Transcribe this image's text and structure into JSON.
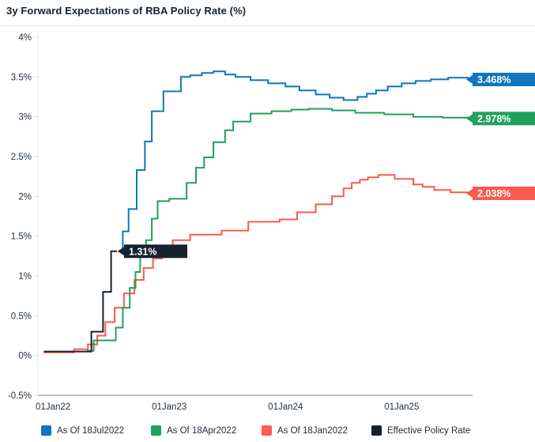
{
  "header": {
    "title": "3y Forward Expectations of RBA Policy Rate (%)"
  },
  "chart_data": {
    "type": "line",
    "step_interpolation": true,
    "title": "3y Forward Expectations of RBA Policy Rate (%)",
    "xlabel": "",
    "ylabel": "",
    "grid": false,
    "legend_position": "bottom",
    "xlim": [
      -0.13,
      3.61
    ],
    "ylim": [
      -0.5,
      4
    ],
    "x_axis": {
      "tick_labels": [
        "01Jan22",
        "01Jan23",
        "01Jan24",
        "01Jan25"
      ],
      "tick_values": [
        0,
        1,
        2,
        3
      ]
    },
    "y_axis": {
      "tick_labels": [
        "4%",
        "3.5%",
        "3%",
        "2.5%",
        "2%",
        "1.5%",
        "1%",
        "0.5%",
        "0%",
        "-0.5%"
      ],
      "tick_values": [
        4,
        3.5,
        3,
        2.5,
        2,
        1.5,
        1,
        0.5,
        0,
        -0.5
      ]
    },
    "series": [
      {
        "name": "As Of 18Jan2022",
        "color": "#fa5a50",
        "end_label": "2.038%",
        "end_label_side": "right",
        "points": [
          [
            -0.08,
            0.04
          ],
          [
            0.18,
            0.08
          ],
          [
            0.3,
            0.14
          ],
          [
            0.38,
            0.25
          ],
          [
            0.45,
            0.42
          ],
          [
            0.53,
            0.6
          ],
          [
            0.61,
            0.78
          ],
          [
            0.7,
            0.95
          ],
          [
            0.78,
            1.1
          ],
          [
            0.86,
            1.22
          ],
          [
            0.94,
            1.35
          ],
          [
            1.03,
            1.45
          ],
          [
            1.18,
            1.52
          ],
          [
            1.45,
            1.57
          ],
          [
            1.68,
            1.68
          ],
          [
            1.95,
            1.71
          ],
          [
            2.1,
            1.8
          ],
          [
            2.26,
            1.9
          ],
          [
            2.4,
            2.0
          ],
          [
            2.5,
            2.1
          ],
          [
            2.57,
            2.17
          ],
          [
            2.64,
            2.21
          ],
          [
            2.71,
            2.24
          ],
          [
            2.8,
            2.27
          ],
          [
            2.94,
            2.22
          ],
          [
            3.1,
            2.15
          ],
          [
            3.18,
            2.12
          ],
          [
            3.28,
            2.08
          ],
          [
            3.42,
            2.05
          ],
          [
            3.57,
            2.038
          ]
        ]
      },
      {
        "name": "As Of 18Apr2022",
        "color": "#20a05c",
        "end_label": "2.978%",
        "end_label_side": "right",
        "points": [
          [
            0.29,
            0.06
          ],
          [
            0.35,
            0.19
          ],
          [
            0.54,
            0.35
          ],
          [
            0.6,
            0.6
          ],
          [
            0.66,
            0.85
          ],
          [
            0.71,
            1.05
          ],
          [
            0.75,
            1.25
          ],
          [
            0.8,
            1.45
          ],
          [
            0.85,
            1.72
          ],
          [
            0.9,
            1.94
          ],
          [
            1.0,
            1.97
          ],
          [
            1.15,
            2.17
          ],
          [
            1.23,
            2.36
          ],
          [
            1.3,
            2.49
          ],
          [
            1.38,
            2.68
          ],
          [
            1.48,
            2.83
          ],
          [
            1.55,
            2.94
          ],
          [
            1.7,
            3.04
          ],
          [
            1.88,
            3.07
          ],
          [
            2.05,
            3.09
          ],
          [
            2.2,
            3.1
          ],
          [
            2.4,
            3.08
          ],
          [
            2.6,
            3.05
          ],
          [
            2.85,
            3.03
          ],
          [
            3.1,
            3.0
          ],
          [
            3.35,
            2.99
          ],
          [
            3.57,
            2.978
          ]
        ]
      },
      {
        "name": "As Of 18Jul2022",
        "color": "#0e76bd",
        "end_label": "3.468%",
        "end_label_side": "right",
        "points": [
          [
            0.56,
            1.31
          ],
          [
            0.6,
            1.56
          ],
          [
            0.65,
            1.84
          ],
          [
            0.72,
            2.33
          ],
          [
            0.79,
            2.69
          ],
          [
            0.85,
            3.07
          ],
          [
            0.95,
            3.32
          ],
          [
            1.1,
            3.5
          ],
          [
            1.18,
            3.52
          ],
          [
            1.28,
            3.55
          ],
          [
            1.38,
            3.57
          ],
          [
            1.48,
            3.53
          ],
          [
            1.57,
            3.5
          ],
          [
            1.7,
            3.46
          ],
          [
            1.85,
            3.42
          ],
          [
            2.0,
            3.38
          ],
          [
            2.12,
            3.33
          ],
          [
            2.26,
            3.28
          ],
          [
            2.38,
            3.24
          ],
          [
            2.5,
            3.21
          ],
          [
            2.62,
            3.25
          ],
          [
            2.7,
            3.29
          ],
          [
            2.78,
            3.33
          ],
          [
            2.88,
            3.38
          ],
          [
            3.0,
            3.42
          ],
          [
            3.12,
            3.45
          ],
          [
            3.25,
            3.47
          ],
          [
            3.4,
            3.49
          ],
          [
            3.57,
            3.468
          ]
        ]
      },
      {
        "name": "Effective Policy Rate",
        "color": "#16222e",
        "end_label": "1.31%",
        "end_label_side": "at-line-end",
        "points": [
          [
            -0.08,
            0.05
          ],
          [
            0.33,
            0.3
          ],
          [
            0.43,
            0.8
          ],
          [
            0.5,
            1.31
          ],
          [
            0.55,
            1.31
          ]
        ]
      }
    ],
    "legend_order": [
      "As Of 18Jul2022",
      "As Of 18Apr2022",
      "As Of 18Jan2022",
      "Effective Policy Rate"
    ]
  },
  "legend": {
    "items": [
      {
        "label": "As Of 18Jul2022",
        "color": "#0e76bd"
      },
      {
        "label": "As Of 18Apr2022",
        "color": "#20a05c"
      },
      {
        "label": "As Of 18Jan2022",
        "color": "#fa5a50"
      },
      {
        "label": "Effective Policy Rate",
        "color": "#16222e"
      }
    ]
  }
}
